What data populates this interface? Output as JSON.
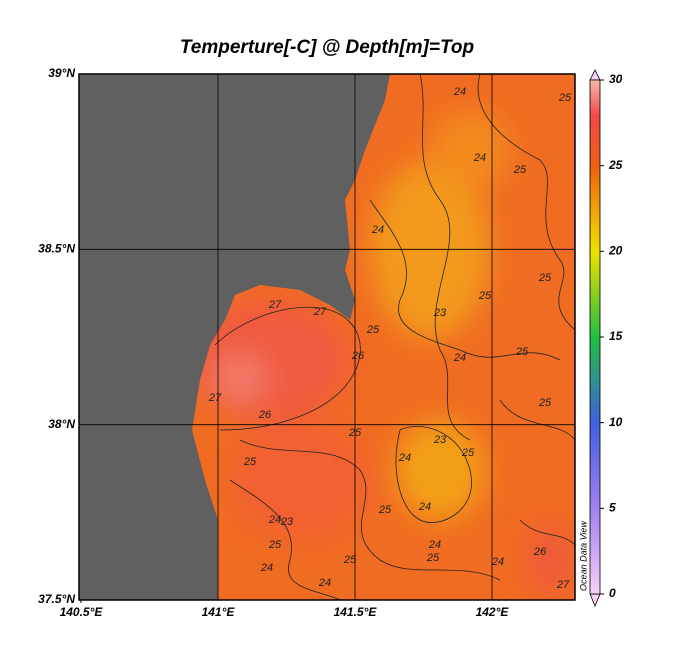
{
  "map": {
    "title": "Temperture[-C] @ Depth[m]=Top",
    "lat_ticks": [
      {
        "value": 39,
        "label": "39°N"
      },
      {
        "value": 38.5,
        "label": "38.5°N"
      },
      {
        "value": 38,
        "label": "38°N"
      },
      {
        "value": 37.5,
        "label": "37.5°N"
      }
    ],
    "lon_ticks": [
      {
        "value": 140.5,
        "label": "140.5°E"
      },
      {
        "value": 141,
        "label": "141°E"
      },
      {
        "value": 141.5,
        "label": "141.5°E"
      },
      {
        "value": 142,
        "label": "142°E"
      }
    ],
    "colorbar": {
      "range": [
        0,
        30
      ],
      "ticks": [
        0,
        5,
        10,
        15,
        20,
        25,
        30
      ]
    },
    "contour_labels": [
      24,
      25,
      24,
      25,
      24,
      25,
      25,
      27,
      23,
      27,
      25,
      26,
      24,
      25,
      27,
      26,
      25,
      25,
      24,
      25,
      23,
      25,
      24,
      23,
      25,
      24,
      25,
      24,
      24,
      25,
      24,
      25,
      24,
      26,
      27
    ],
    "watermark": "Ocean Data View"
  }
}
